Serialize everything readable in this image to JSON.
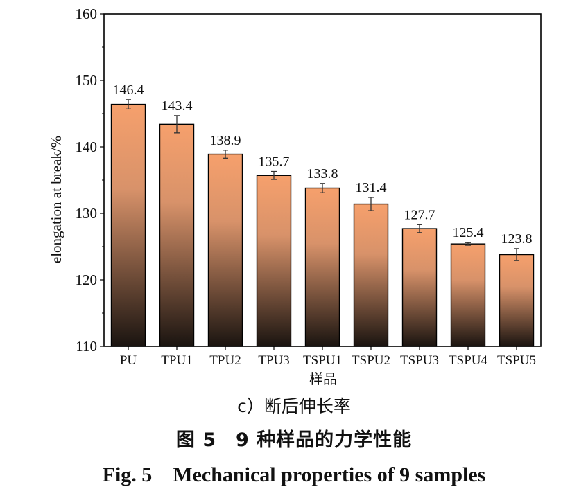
{
  "chart_data": {
    "type": "bar",
    "categories": [
      "PU",
      "TPU1",
      "TPU2",
      "TPU3",
      "TSPU1",
      "TSPU2",
      "TSPU3",
      "TSPU4",
      "TSPU5"
    ],
    "values": [
      146.4,
      143.4,
      138.9,
      135.7,
      133.8,
      131.4,
      127.7,
      125.4,
      123.8
    ],
    "errors": [
      0.7,
      1.3,
      0.6,
      0.6,
      0.7,
      1.0,
      0.6,
      0.2,
      0.9
    ],
    "data_labels": [
      "146.4",
      "143.4",
      "138.9",
      "135.7",
      "133.8",
      "131.4",
      "127.7",
      "125.4",
      "123.8"
    ],
    "xlabel": "样品",
    "ylabel": "elongation at break/%",
    "ylim": [
      110,
      160
    ],
    "yticks": [
      110,
      120,
      130,
      140,
      150,
      160
    ],
    "ytick_labels": [
      "110",
      "120",
      "130",
      "140",
      "150",
      "160"
    ],
    "grid": false,
    "colors": {
      "bar_top": "#f6a06c",
      "bar_mid": "#d8926a",
      "bar_bottom": "#1a1410",
      "error_bar": "#333333",
      "frame": "#000000"
    }
  },
  "captions": {
    "sub": "c）断后伸长率",
    "cn": "图 5　9 种样品的力学性能",
    "en": "Fig. 5　Mechanical properties of 9 samples"
  }
}
